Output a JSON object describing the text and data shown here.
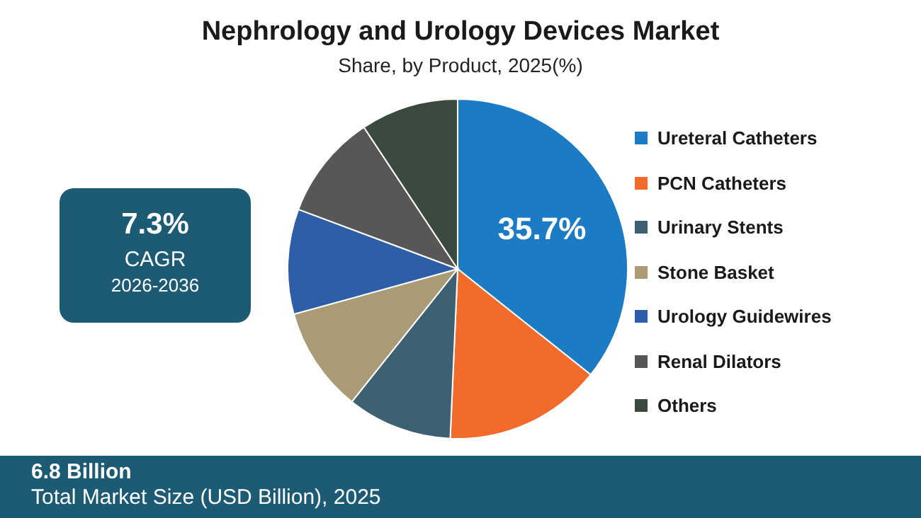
{
  "chart_data": {
    "type": "pie",
    "title": "Nephrology and Urology Devices Market",
    "subtitle": "Share, by Product, 2025(%)",
    "categories": [
      "Ureteral Catheters",
      "PCN Catheters",
      "Urinary Stents",
      "Stone Basket",
      "Urology Guidewires",
      "Renal Dilators",
      "Others"
    ],
    "values": [
      35.7,
      15,
      10,
      10,
      10,
      10,
      9.3
    ],
    "colors": [
      "#1b7bc4",
      "#f26b2a",
      "#3e6073",
      "#a99b76",
      "#2e5ea8",
      "#575757",
      "#3a4a3f"
    ],
    "value_labels": [
      "35.7%",
      null,
      null,
      null,
      null,
      null,
      null
    ],
    "legend": "right",
    "annotations": [
      "7.3%",
      "CAGR",
      "2026-2036",
      "6.8 Billion",
      "Total Market Size (USD Billion), 2025"
    ]
  }
}
